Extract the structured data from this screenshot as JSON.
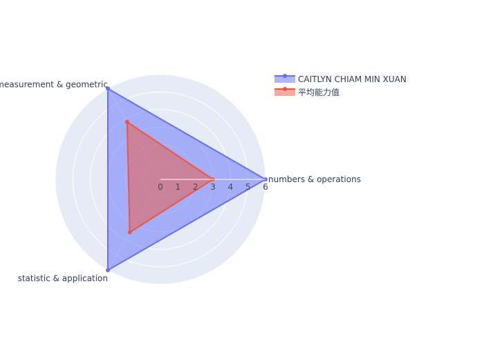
{
  "chart_data": {
    "type": "radar",
    "theta_categories": [
      "numbers & operations",
      "measurement & geometric",
      "statistic & application"
    ],
    "radial_range": [
      0,
      6
    ],
    "radial_ticks": [
      "0",
      "1",
      "2",
      "3",
      "4",
      "5",
      "6"
    ],
    "series": [
      {
        "name": "CAITLYN CHIAM MIN XUAN",
        "values": [
          6,
          6,
          6
        ],
        "color": "#636efa"
      },
      {
        "name": "平均能力值",
        "values": [
          3,
          3.8,
          3.5
        ],
        "color": "#ef553b"
      }
    ],
    "polar_background": "#e5ecf6",
    "gridline_color": "#ffffff",
    "grid": true,
    "legend_position": "top-right"
  }
}
